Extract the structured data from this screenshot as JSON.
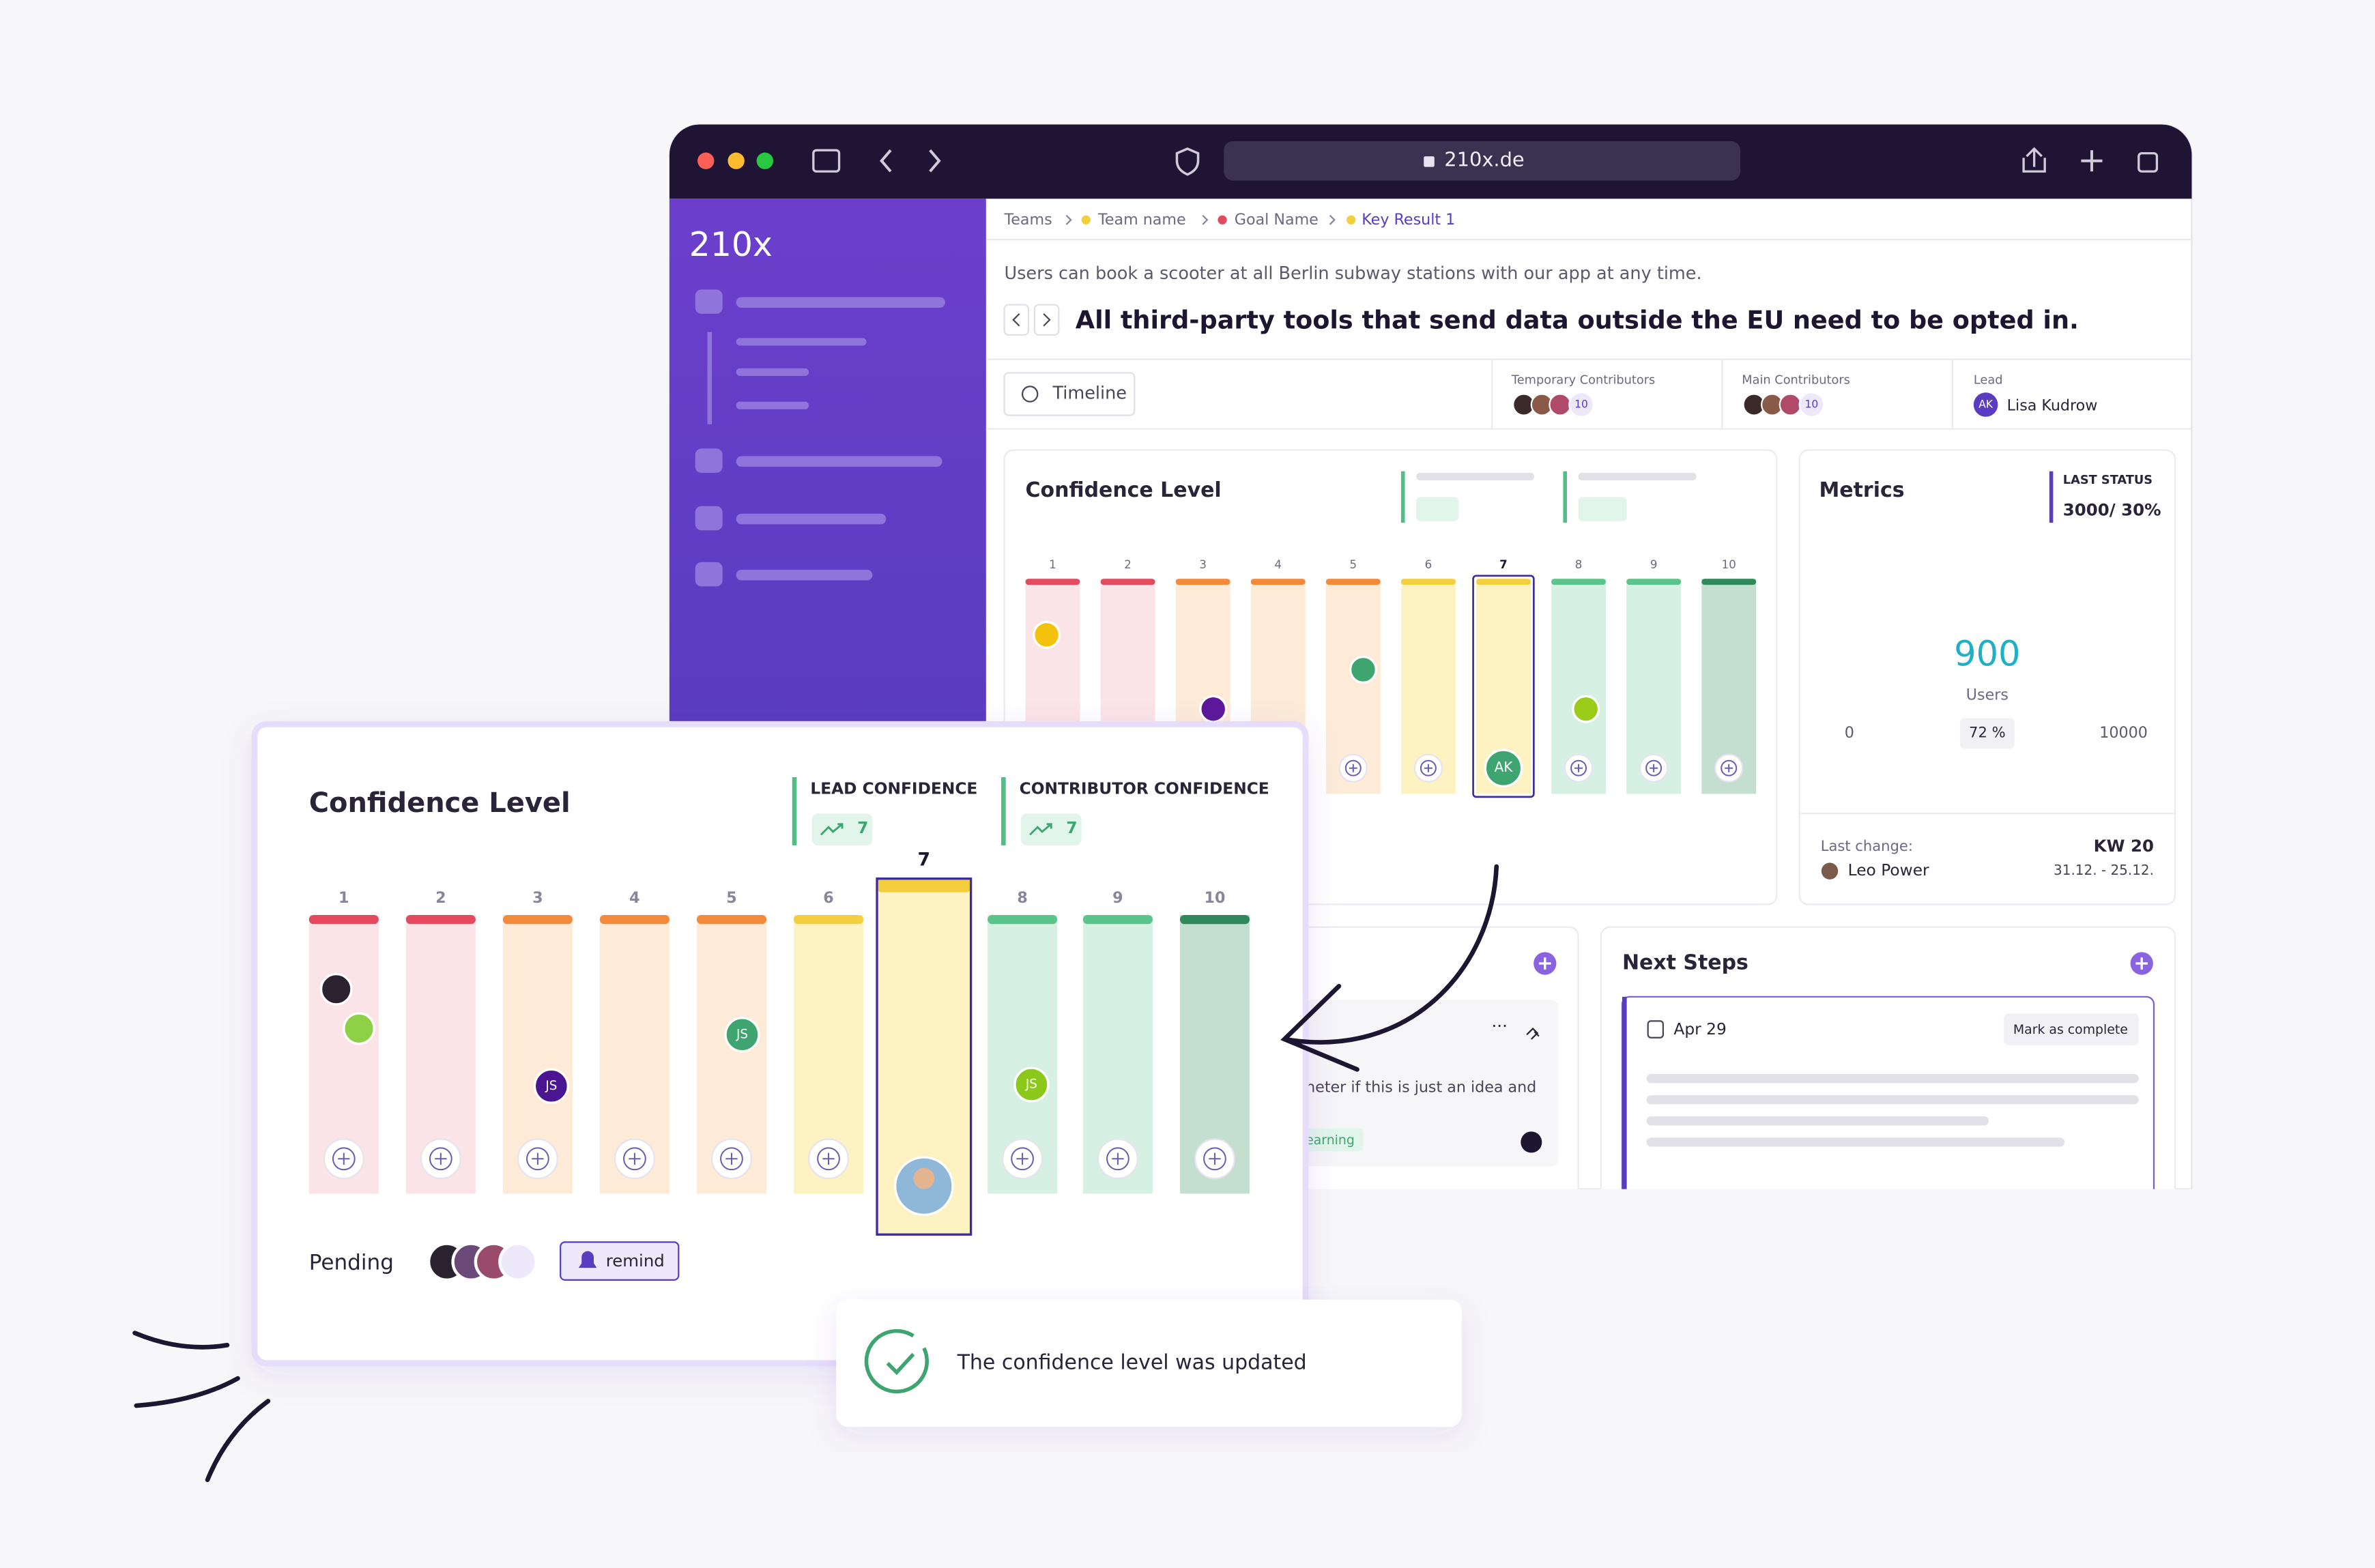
{
  "browser": {
    "url": "210x.de"
  },
  "app": {
    "logo": "210x"
  },
  "breadcrumb": [
    "Teams",
    "Team name",
    "Goal Name",
    "Key Result 1"
  ],
  "objective": "Users can book a scooter at all Berlin subway stations with our app at any time.",
  "key_result": "All third-party tools that send data outside the EU need to be opted in.",
  "timeline_button": "Timeline",
  "contributors": {
    "temporary": {
      "label": "Temporary Contributors",
      "count": 10
    },
    "main": {
      "label": "Main Contributors",
      "count": 10
    },
    "lead": {
      "label": "Lead",
      "initials": "AK",
      "name": "Lisa Kudrow"
    }
  },
  "confidence_scale": {
    "levels": [
      1,
      2,
      3,
      4,
      5,
      6,
      7,
      8,
      9,
      10
    ],
    "selected": 7,
    "top_colors": [
      "#e4495e",
      "#e4495e",
      "#f5893b",
      "#f5893b",
      "#f5893b",
      "#f4cf3d",
      "#f4cf3d",
      "#5bc48b",
      "#5bc48b",
      "#2e8a5a"
    ],
    "fill_colors": [
      "#fbe4e7",
      "#fbe4e7",
      "#fdebd8",
      "#fdebd8",
      "#fdebd8",
      "#fdf2c2",
      "#fdf2c2",
      "#d6f1e3",
      "#d6f1e3",
      "#c4dfcf"
    ]
  },
  "confidence_panel": {
    "title": "Confidence Level",
    "lead_initials": "AK"
  },
  "metrics": {
    "title": "Metrics",
    "last_status_label": "LAST STATUS",
    "last_status": "3000/ 30%",
    "value": 900,
    "unit": "Users",
    "min": 0,
    "max": 10000,
    "progress": {
      "value": 72,
      "label": "72 %"
    },
    "last_change_label": "Last change:",
    "last_change_user": "Leo Power",
    "week": "KW 20",
    "date_range": "31.12. - 25.12."
  },
  "note": {
    "text": "neter if this is just an idea and",
    "tag": "earning"
  },
  "next_steps": {
    "title": "Next Steps",
    "date": "Apr 29",
    "button": "Mark as complete"
  },
  "zoom_card": {
    "title": "Confidence Level",
    "lead_label": "LEAD CONFIDENCE",
    "lead_value": 7,
    "contributor_label": "CONTRIBUTOR CONFIDENCE",
    "contributor_value": 7,
    "avatars": [
      "JS",
      "JS",
      "JS"
    ],
    "pending_label": "Pending",
    "remind_button": "remind"
  },
  "toast": {
    "message": "The confidence level was updated"
  }
}
